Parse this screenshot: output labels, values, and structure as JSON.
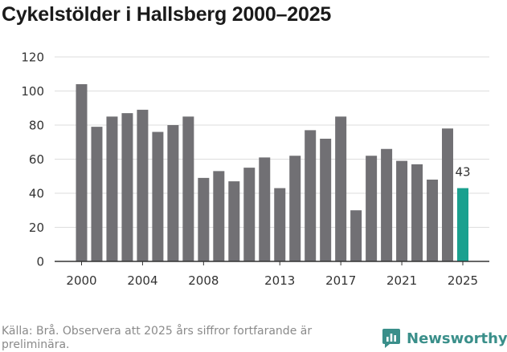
{
  "chart_data": {
    "type": "bar",
    "title": "Cykelstölder i Hallsberg 2000–2025",
    "xlabel": "",
    "ylabel": "",
    "ylim": [
      0,
      120
    ],
    "yticks": [
      0,
      20,
      40,
      60,
      80,
      100,
      120
    ],
    "xticks": [
      2000,
      2004,
      2008,
      2013,
      2017,
      2021,
      2025
    ],
    "grid": true,
    "categories": [
      2000,
      2001,
      2002,
      2003,
      2004,
      2005,
      2006,
      2007,
      2008,
      2009,
      2010,
      2011,
      2012,
      2013,
      2014,
      2015,
      2016,
      2017,
      2018,
      2019,
      2020,
      2021,
      2022,
      2023,
      2024,
      2025
    ],
    "values": [
      104,
      79,
      85,
      87,
      89,
      76,
      80,
      85,
      49,
      53,
      47,
      55,
      61,
      43,
      62,
      77,
      72,
      85,
      30,
      62,
      66,
      59,
      57,
      48,
      78,
      43
    ],
    "annotations": [
      {
        "category": 2025,
        "label": "43"
      }
    ],
    "colors": {
      "default": "#717074",
      "highlight": "#1aa08f",
      "grid": "#dddddd",
      "axis": "#333333"
    },
    "highlight_category": 2025
  },
  "footer": {
    "source": "Källa: Brå. Observera att 2025 års siffror fortfarande är preliminära.",
    "brand": "Newsworthy",
    "brand_color": "#3a8f8a",
    "brand_icon": "newsworthy-logo-icon"
  }
}
